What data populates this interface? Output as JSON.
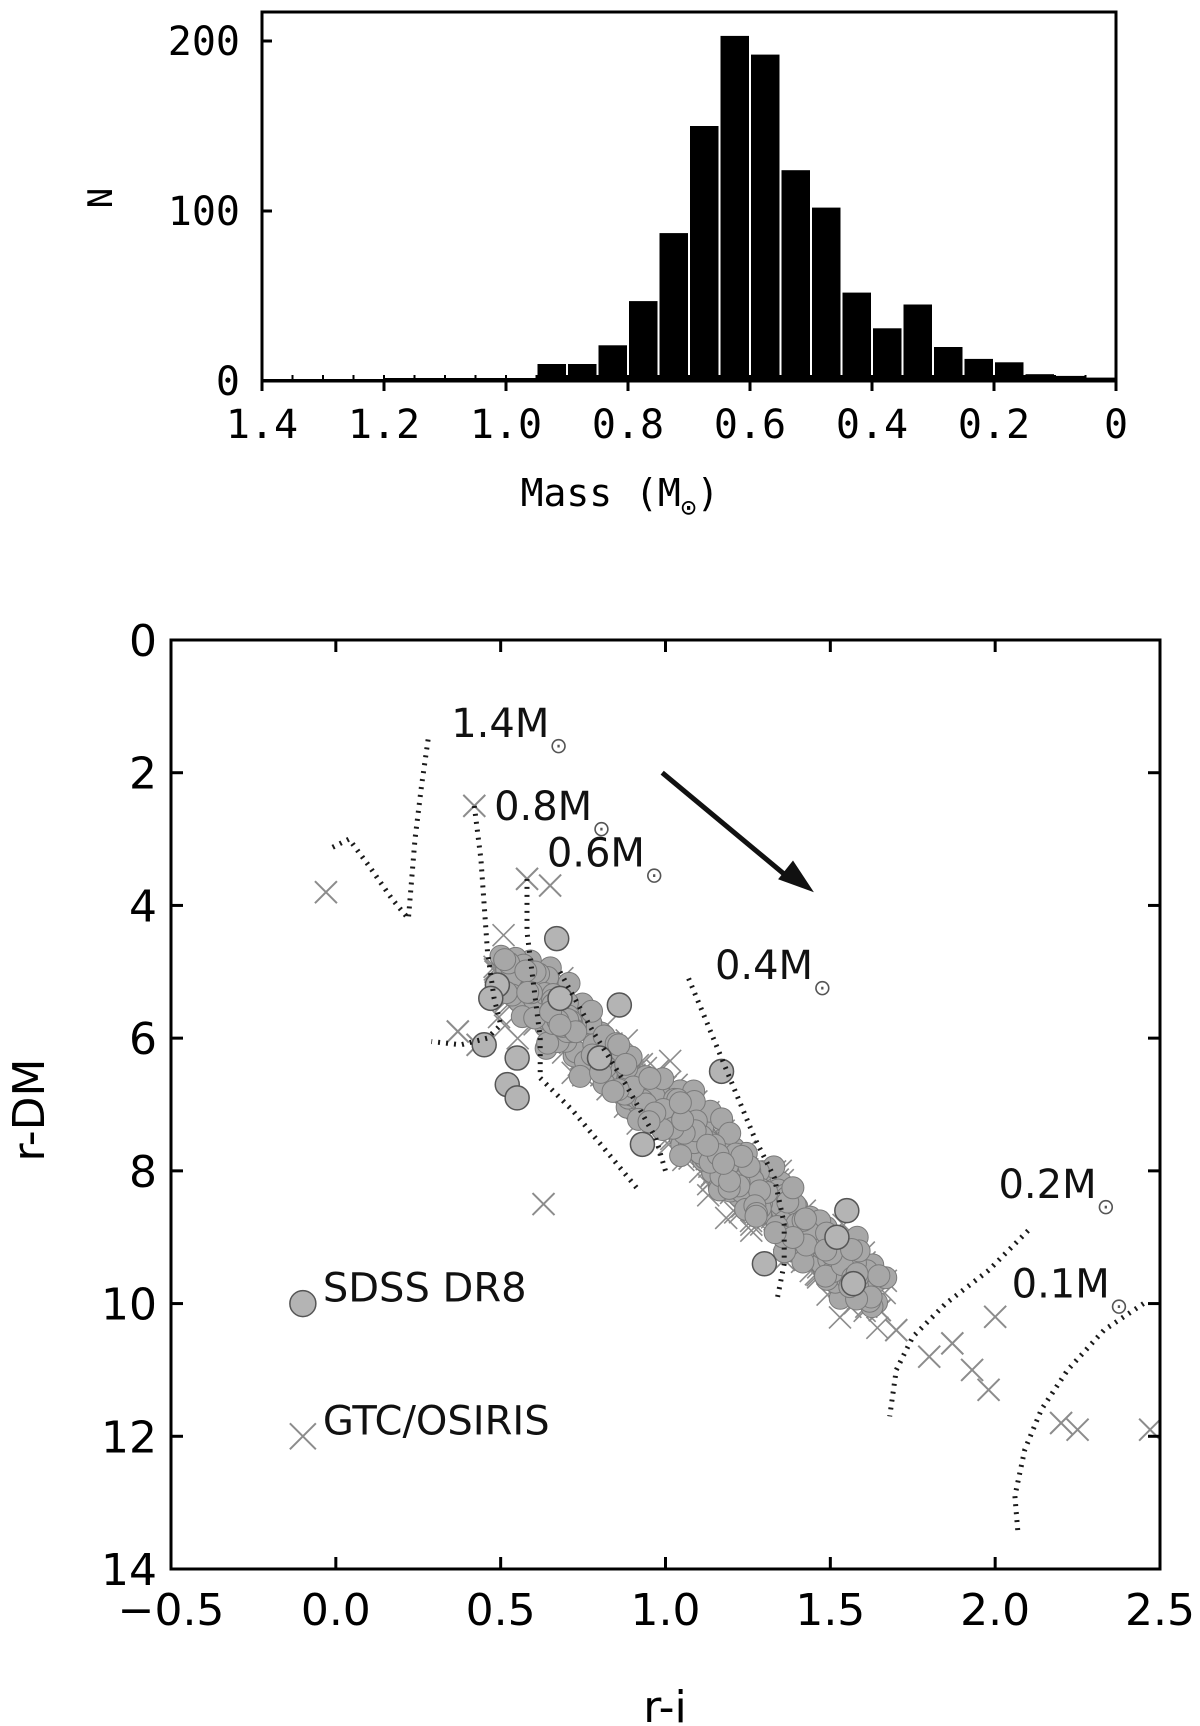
{
  "chart_data": [
    {
      "type": "bar",
      "xlabel": "Mass (M",
      "xlabel_sub": "⊙",
      "xlabel_close": ")",
      "ylabel": "N",
      "xlim": [
        1.4,
        0
      ],
      "ylim": [
        0,
        200
      ],
      "x_ticks": [
        "1.4",
        "1.2",
        "1.0",
        "0.8",
        "0.6",
        "0.4",
        "0.2",
        "0"
      ],
      "y_ticks": [
        "0",
        "100",
        "200"
      ],
      "bin_width": 0.05,
      "bins": [
        {
          "x": 1.4,
          "value": 0
        },
        {
          "x": 1.35,
          "value": 0
        },
        {
          "x": 1.3,
          "value": 0
        },
        {
          "x": 1.25,
          "value": 0
        },
        {
          "x": 1.2,
          "value": 1
        },
        {
          "x": 1.15,
          "value": 1
        },
        {
          "x": 1.1,
          "value": 1
        },
        {
          "x": 1.05,
          "value": 1
        },
        {
          "x": 1.0,
          "value": 1
        },
        {
          "x": 0.95,
          "value": 10
        },
        {
          "x": 0.9,
          "value": 10
        },
        {
          "x": 0.85,
          "value": 21
        },
        {
          "x": 0.8,
          "value": 47
        },
        {
          "x": 0.75,
          "value": 87
        },
        {
          "x": 0.7,
          "value": 150
        },
        {
          "x": 0.65,
          "value": 203
        },
        {
          "x": 0.6,
          "value": 192
        },
        {
          "x": 0.55,
          "value": 124
        },
        {
          "x": 0.5,
          "value": 102
        },
        {
          "x": 0.45,
          "value": 52
        },
        {
          "x": 0.4,
          "value": 31
        },
        {
          "x": 0.35,
          "value": 45
        },
        {
          "x": 0.3,
          "value": 20
        },
        {
          "x": 0.25,
          "value": 13
        },
        {
          "x": 0.2,
          "value": 11
        },
        {
          "x": 0.15,
          "value": 4
        },
        {
          "x": 0.1,
          "value": 3
        },
        {
          "x": 0.05,
          "value": 2
        }
      ]
    },
    {
      "type": "scatter",
      "xlabel": "r-i",
      "ylabel": "r-DM",
      "xlim": [
        -0.5,
        2.5
      ],
      "ylim": [
        14,
        0
      ],
      "y_inverted": true,
      "x_ticks": [
        "−0.5",
        "0.0",
        "0.5",
        "1.0",
        "1.5",
        "2.0",
        "2.5"
      ],
      "y_ticks": [
        "0",
        "2",
        "4",
        "6",
        "8",
        "10",
        "12",
        "14"
      ],
      "legend": [
        {
          "label": "SDSS DR8",
          "marker": "circle",
          "x": -0.1,
          "y": 10
        },
        {
          "label": "GTC/OSIRIS",
          "marker": "cross",
          "x": -0.1,
          "y": 12
        }
      ],
      "tracks": [
        {
          "label": "1.4M",
          "label_x": 0.35,
          "label_y": 1.25,
          "points": [
            [
              0.28,
              1.5
            ],
            [
              0.26,
              2.2
            ],
            [
              0.24,
              3.0
            ],
            [
              0.23,
              3.6
            ],
            [
              0.22,
              4.2
            ],
            [
              0.17,
              3.9
            ],
            [
              0.1,
              3.4
            ],
            [
              0.04,
              3.0
            ],
            [
              -0.02,
              3.15
            ]
          ]
        },
        {
          "label": "0.8M",
          "label_x": 0.48,
          "label_y": 2.5,
          "points": [
            [
              0.42,
              2.5
            ],
            [
              0.44,
              3.3
            ],
            [
              0.45,
              4.0
            ],
            [
              0.46,
              4.7
            ],
            [
              0.48,
              5.4
            ],
            [
              0.5,
              5.8
            ],
            [
              0.46,
              6.0
            ],
            [
              0.38,
              6.1
            ],
            [
              0.29,
              6.05
            ]
          ]
        },
        {
          "label": "0.6M",
          "label_x": 0.64,
          "label_y": 3.2,
          "points": [
            [
              0.58,
              3.6
            ],
            [
              0.58,
              4.4
            ],
            [
              0.6,
              5.2
            ],
            [
              0.62,
              6.0
            ],
            [
              0.62,
              6.6
            ]
          ]
        },
        {
          "label": "0.4M",
          "label_x": 1.15,
          "label_y": 4.9,
          "points": [
            [
              1.07,
              5.1
            ],
            [
              1.12,
              5.7
            ],
            [
              1.17,
              6.3
            ],
            [
              1.22,
              6.9
            ],
            [
              1.27,
              7.5
            ],
            [
              1.33,
              8.1
            ],
            [
              1.36,
              8.8
            ],
            [
              1.36,
              9.4
            ],
            [
              1.34,
              9.9
            ]
          ]
        },
        {
          "label": "0.2M",
          "label_x": 2.01,
          "label_y": 8.2,
          "points": [
            [
              2.1,
              8.9
            ],
            [
              1.98,
              9.5
            ],
            [
              1.85,
              10.0
            ],
            [
              1.75,
              10.5
            ],
            [
              1.7,
              11.0
            ],
            [
              1.68,
              11.7
            ]
          ]
        },
        {
          "label": "0.1M",
          "label_x": 2.05,
          "label_y": 9.7,
          "points": [
            [
              2.45,
              10.0
            ],
            [
              2.33,
              10.4
            ],
            [
              2.22,
              11.0
            ],
            [
              2.14,
              11.6
            ],
            [
              2.09,
              12.2
            ],
            [
              2.06,
              12.9
            ],
            [
              2.07,
              13.5
            ]
          ]
        },
        {
          "label": "",
          "label_x": 0,
          "label_y": 0,
          "points": [
            [
              0.62,
              6.6
            ],
            [
              0.72,
              7.1
            ],
            [
              0.82,
              7.7
            ],
            [
              0.92,
              8.3
            ]
          ]
        },
        {
          "label": "",
          "label_x": 0,
          "label_y": 0,
          "points": [
            [
              0.68,
              5.0
            ],
            [
              0.78,
              5.9
            ],
            [
              0.88,
              6.7
            ],
            [
              0.97,
              7.5
            ],
            [
              1.0,
              8.0
            ]
          ]
        }
      ],
      "track_label_sub": "⊙",
      "reddening_arrow": {
        "x1": 0.99,
        "y1": 2.0,
        "x2": 1.45,
        "y2": 3.8
      },
      "points_seed": 7,
      "circle_count": 420,
      "cross_count": 320,
      "extra_circles": [
        [
          0.49,
          5.2
        ],
        [
          0.47,
          5.4
        ],
        [
          0.45,
          6.1
        ],
        [
          0.55,
          6.3
        ],
        [
          0.52,
          6.7
        ],
        [
          0.55,
          6.9
        ],
        [
          0.67,
          4.5
        ],
        [
          0.68,
          5.4
        ],
        [
          0.86,
          5.5
        ],
        [
          1.17,
          6.5
        ],
        [
          1.55,
          8.6
        ],
        [
          1.52,
          9.0
        ],
        [
          1.3,
          9.4
        ],
        [
          1.57,
          9.7
        ],
        [
          0.93,
          7.6
        ],
        [
          0.8,
          6.3
        ]
      ],
      "extra_crosses": [
        [
          0.42,
          2.5
        ],
        [
          -0.03,
          3.8
        ],
        [
          0.58,
          3.6
        ],
        [
          0.65,
          3.7
        ],
        [
          2.2,
          11.8
        ],
        [
          2.25,
          11.9
        ],
        [
          2.47,
          11.9
        ],
        [
          1.87,
          10.6
        ],
        [
          1.93,
          11.0
        ],
        [
          1.98,
          11.3
        ],
        [
          1.8,
          10.8
        ],
        [
          1.7,
          10.4
        ],
        [
          1.65,
          10.1
        ],
        [
          0.63,
          8.5
        ],
        [
          2.0,
          10.2
        ],
        [
          0.43,
          6.1
        ],
        [
          0.37,
          5.9
        ]
      ],
      "circle_color": "#a7a7a7",
      "cross_color": "#8c8c8c",
      "track_color": "#1a1a1a"
    }
  ]
}
